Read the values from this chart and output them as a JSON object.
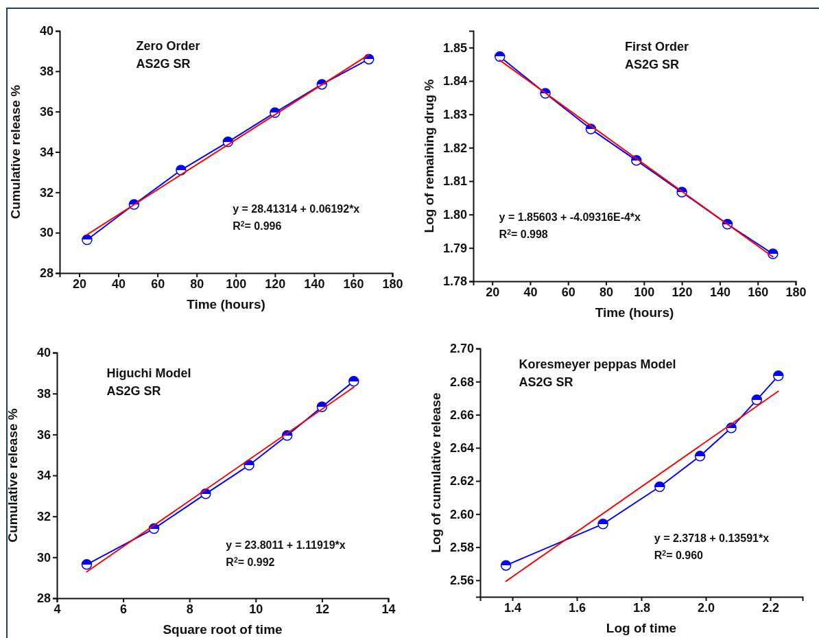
{
  "chart_data": [
    {
      "type": "line",
      "title": "Zero Order",
      "subtitle": "AS2G SR",
      "xlabel": "Time (hours)",
      "ylabel": "Cumulative release %",
      "xlim": [
        10,
        180
      ],
      "xticks": [
        20,
        40,
        60,
        80,
        100,
        120,
        140,
        160,
        180
      ],
      "ylim": [
        28,
        40
      ],
      "yticks": [
        28,
        30,
        32,
        34,
        36,
        38,
        40
      ],
      "grid": false,
      "annotations": [
        "y = 28.41314 + 0.06192*x",
        "R$^{2}$= 0.996"
      ],
      "series": [
        {
          "color": "#0000ff",
          "marker": "circle",
          "x": [
            24,
            48,
            72,
            96,
            120,
            144,
            168
          ],
          "values": [
            29.65,
            31.4,
            33.1,
            34.5,
            35.95,
            37.35,
            38.6
          ]
        },
        {
          "color": "#ff0000",
          "marker": "none",
          "x": [
            24,
            168
          ],
          "values": [
            29.9,
            38.82
          ]
        }
      ]
    },
    {
      "type": "line",
      "title": "First Order",
      "subtitle": "AS2G SR",
      "xlabel": "Time (hours)",
      "ylabel": "Log of remaining drug %",
      "xlim": [
        10,
        180
      ],
      "xticks": [
        20,
        40,
        60,
        80,
        100,
        120,
        140,
        160,
        180
      ],
      "ylim": [
        1.78,
        1.855
      ],
      "yticks": [
        1.78,
        1.79,
        {
          "value": 1.8,
          "label": "1.80"
        },
        1.81,
        1.82,
        1.83,
        1.84,
        1.85
      ],
      "grid": false,
      "annotations": [
        "y = 1.85603 + -4.09316E-4*x",
        "R$^{2}$= 0.998"
      ],
      "series": [
        {
          "color": "#0000ff",
          "marker": "circle",
          "x": [
            24,
            48,
            72,
            96,
            120,
            144,
            168
          ],
          "values": [
            1.8473,
            1.8363,
            1.8256,
            1.8162,
            1.8067,
            1.7971,
            1.7882
          ]
        },
        {
          "color": "#ff0000",
          "marker": "none",
          "x": [
            24,
            168
          ],
          "values": [
            1.8462,
            1.7873
          ]
        }
      ]
    },
    {
      "type": "line",
      "title": "Higuchi Model",
      "subtitle": "AS2G SR",
      "xlabel": "Square root of time",
      "ylabel": "Cumulative release %",
      "xlim": [
        4,
        14
      ],
      "xticks": [
        4,
        6,
        8,
        10,
        12,
        14
      ],
      "ylim": [
        28,
        40
      ],
      "yticks": [
        28,
        30,
        32,
        34,
        36,
        38,
        40
      ],
      "grid": false,
      "annotations": [
        "y = 23.8011 + 1.11919*x",
        "R$^{2}$= 0.992"
      ],
      "series": [
        {
          "color": "#0000ff",
          "marker": "circle",
          "x": [
            4.9,
            6.93,
            8.49,
            9.8,
            10.95,
            12,
            12.96
          ],
          "values": [
            29.65,
            31.4,
            33.1,
            34.5,
            35.95,
            37.35,
            38.6
          ]
        },
        {
          "color": "#ff0000",
          "marker": "none",
          "x": [
            4.9,
            12.96
          ],
          "values": [
            29.29,
            38.31
          ]
        }
      ]
    },
    {
      "type": "line",
      "title": "Koresmeyer peppas Model",
      "subtitle": "AS2G SR",
      "xlabel": "Log of time",
      "ylabel": "Log of cumulative release",
      "xlim": [
        1.3,
        2.3
      ],
      "xticks": [
        {
          "value": 1.4,
          "label": "1.4"
        },
        {
          "value": 1.6,
          "label": "1.6"
        },
        {
          "value": 1.8,
          "label": "1.8"
        },
        {
          "value": 2.0,
          "label": "2.0"
        },
        {
          "value": 2.2,
          "label": "2.2"
        }
      ],
      "ylim": [
        2.55,
        2.7
      ],
      "yticks": [
        {
          "value": 2.56,
          "label": "2.56"
        },
        {
          "value": 2.58,
          "label": "2.58"
        },
        {
          "value": 2.6,
          "label": "2.60"
        },
        {
          "value": 2.62,
          "label": "2.62"
        },
        {
          "value": 2.64,
          "label": "2.64"
        },
        {
          "value": 2.66,
          "label": "2.66"
        },
        {
          "value": 2.68,
          "label": "2.68"
        },
        {
          "value": 2.7,
          "label": "2.70"
        }
      ],
      "grid": false,
      "annotations": [
        "y = 2.3718 + 0.13591*x",
        "R$^{2}$= 0.960"
      ],
      "series": [
        {
          "color": "#0000ff",
          "marker": "circle",
          "x": [
            1.38,
            1.681,
            1.857,
            1.982,
            2.079,
            2.158,
            2.225
          ],
          "values": [
            2.569,
            2.594,
            2.6165,
            2.635,
            2.652,
            2.669,
            2.6835
          ]
        },
        {
          "color": "#ff0000",
          "marker": "none",
          "x": [
            1.38,
            2.225
          ],
          "values": [
            2.5594,
            2.6742
          ]
        }
      ]
    }
  ]
}
